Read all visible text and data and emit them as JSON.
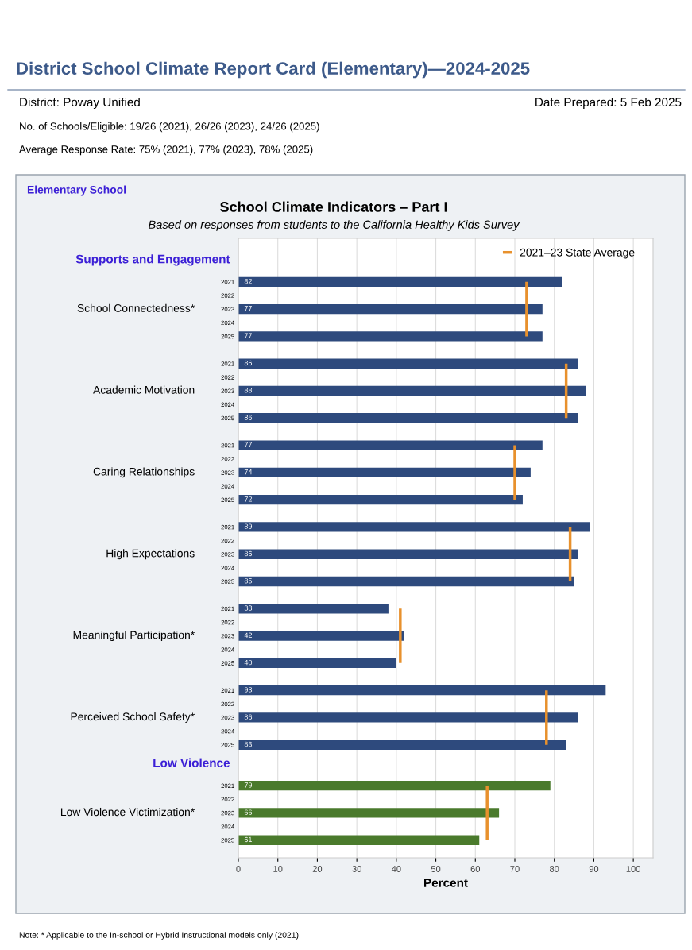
{
  "chart_data": {
    "type": "bar",
    "orientation": "horizontal",
    "title": "School Climate Indicators – Part I",
    "subtitle": "Based on responses from students to the California Healthy Kids Survey",
    "xlabel": "Percent",
    "categories": [
      null,
      null,
      null,
      "2021",
      "2022",
      "2023",
      "2024",
      "2025",
      null,
      "2021",
      "2022",
      "2023",
      "2024",
      "2025",
      null,
      "2021",
      "2022",
      "2023",
      "2024",
      "2025",
      null,
      "2021",
      "2022",
      "2023",
      "2024",
      "2025",
      null,
      "2021",
      "2022",
      "2023",
      "2024",
      "2025",
      null,
      "2021",
      "2022",
      "2023",
      "2024",
      "2025",
      null,
      null,
      "2021",
      "2022",
      "2023",
      "2024",
      "2025"
    ],
    "series": [
      {
        "values": [
          null,
          null,
          null,
          82,
          null,
          77,
          null,
          77,
          null,
          86,
          null,
          88,
          null,
          86,
          null,
          77,
          null,
          74,
          null,
          72,
          null,
          89,
          null,
          86,
          null,
          85,
          null,
          38,
          null,
          42,
          null,
          40,
          null,
          93,
          null,
          86,
          null,
          83,
          null,
          null,
          79,
          null,
          66,
          null,
          61
        ],
        "value_labels": [
          null,
          null,
          null,
          "82",
          null,
          "77",
          null,
          "77",
          null,
          "86",
          null,
          "88",
          null,
          "86",
          null,
          "77",
          null,
          "74",
          null,
          "72",
          null,
          "89",
          null,
          "86",
          null,
          "85",
          null,
          "38",
          null,
          "42",
          null,
          "40",
          null,
          "93",
          null,
          "86",
          null,
          "83",
          null,
          null,
          "79",
          null,
          "66",
          null,
          "61"
        ],
        "colors": [
          null,
          null,
          null,
          "#2e4a7d",
          null,
          "#2e4a7d",
          null,
          "#2e4a7d",
          null,
          "#2e4a7d",
          null,
          "#2e4a7d",
          null,
          "#2e4a7d",
          null,
          "#2e4a7d",
          null,
          "#2e4a7d",
          null,
          "#2e4a7d",
          null,
          "#2e4a7d",
          null,
          "#2e4a7d",
          null,
          "#2e4a7d",
          null,
          "#2e4a7d",
          null,
          "#2e4a7d",
          null,
          "#2e4a7d",
          null,
          "#2e4a7d",
          null,
          "#2e4a7d",
          null,
          "#2e4a7d",
          null,
          null,
          "#4a7a2c",
          null,
          "#4a7a2c",
          null,
          "#4a7a2c"
        ]
      },
      {
        "type": "line",
        "name": "2021–23 State Average",
        "color": "#e8912d",
        "values": [
          null,
          null,
          null,
          73,
          73,
          73,
          73,
          73,
          null,
          83,
          83,
          83,
          83,
          83,
          null,
          70,
          70,
          70,
          70,
          70,
          null,
          84,
          84,
          84,
          84,
          84,
          null,
          41,
          41,
          41,
          41,
          41,
          null,
          78,
          78,
          78,
          78,
          78,
          null,
          null,
          63,
          63,
          63,
          63,
          63
        ]
      }
    ],
    "xlim": [
      0,
      105
    ],
    "xticks": [
      0,
      10,
      20,
      30,
      40,
      50,
      60,
      70,
      80,
      90,
      100
    ],
    "grid": "x",
    "legend": "top right",
    "annotations": [
      "District School Climate Report Card (Elementary)—2024-2025",
      "District: Poway Unified",
      "Date Prepared: 5 Feb 2025",
      "No. of Schools/Eligible: 19/26 (2021), 26/26 (2023), 24/26 (2025)",
      "Average Response Rate: 75% (2021), 77% (2023), 78% (2025)",
      "Elementary School",
      "School Connectedness*",
      "Academic Motivation",
      "Caring Relationships",
      "High Expectations",
      "Meaningful Participation*",
      "Perceived School Safety*",
      "Low Violence Victimization*",
      "Supports and Engagement",
      "Low Violence",
      "Note: * Applicable to the In-school or Hybrid Instructional models only (2021)."
    ]
  }
}
